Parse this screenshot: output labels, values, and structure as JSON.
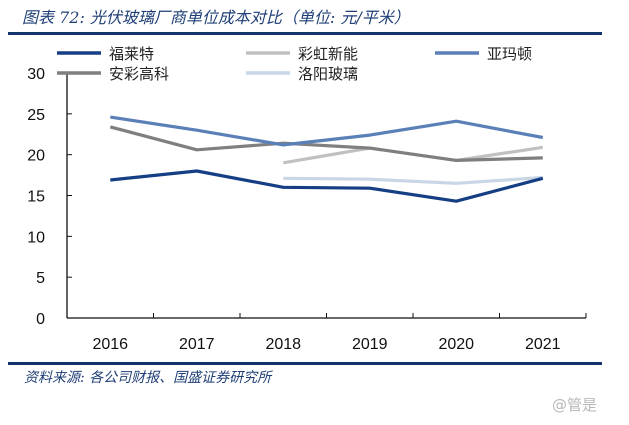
{
  "header": {
    "title": "图表 72:  光伏玻璃厂商单位成本对比（单位: 元/平米）"
  },
  "footer": {
    "source": "资料来源: 各公司财报、国盛证券研究所",
    "watermark": "@管是"
  },
  "chart_data": {
    "type": "line",
    "title": "图表 72:  光伏玻璃厂商单位成本对比（单位: 元/平米）",
    "xlabel": "",
    "ylabel": "",
    "categories": [
      "2016",
      "2017",
      "2018",
      "2019",
      "2020",
      "2021"
    ],
    "ylim": [
      0,
      30
    ],
    "yticks": [
      "0",
      "5",
      "10",
      "15",
      "20",
      "25",
      "30"
    ],
    "grid": false,
    "legend_position": "top",
    "series": [
      {
        "name": "福莱特",
        "color": "#153e84",
        "values": [
          16.9,
          18.0,
          16.0,
          15.9,
          14.3,
          17.1
        ]
      },
      {
        "name": "彩虹新能",
        "color": "#c0c0c0",
        "values": [
          null,
          null,
          19.0,
          20.8,
          19.3,
          20.9
        ]
      },
      {
        "name": "亚玛顿",
        "color": "#5b80b8",
        "values": [
          24.6,
          23.0,
          21.2,
          22.4,
          24.1,
          22.1
        ]
      },
      {
        "name": "安彩高科",
        "color": "#7f7f7f",
        "values": [
          23.4,
          20.6,
          21.4,
          20.8,
          19.3,
          19.6
        ]
      },
      {
        "name": "洛阳玻璃",
        "color": "#c9d6e6",
        "values": [
          null,
          null,
          17.1,
          17.0,
          16.5,
          17.2
        ]
      }
    ]
  }
}
